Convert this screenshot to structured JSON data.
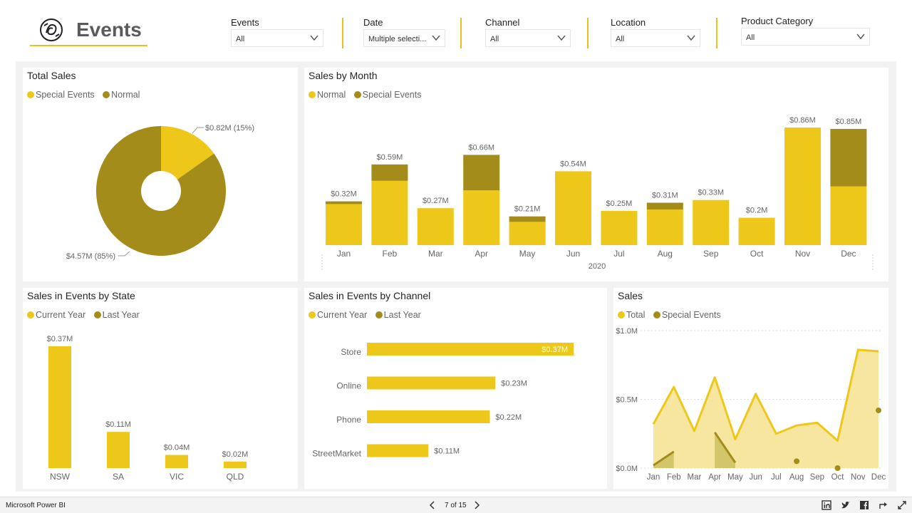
{
  "app": {
    "title": "Events",
    "name": "Microsoft Power BI"
  },
  "filters": [
    {
      "label": "Events",
      "value": "All"
    },
    {
      "label": "Date",
      "value": "Multiple selecti..."
    },
    {
      "label": "Channel",
      "value": "All"
    },
    {
      "label": "Location",
      "value": "All"
    },
    {
      "label": "Product Category",
      "value": "All"
    }
  ],
  "colors": {
    "accent": "#e6c21d",
    "primary": "#edc81b",
    "secondary": "#a48c1a",
    "light": "#f6e6a0"
  },
  "pager": {
    "indicator": "7 of 15"
  },
  "icons": [
    "logo-icon",
    "chevron-down-icon",
    "chevron-left-icon",
    "chevron-right-icon",
    "linkedin-icon",
    "twitter-icon",
    "facebook-icon",
    "share-icon",
    "fullscreen-icon"
  ],
  "chart_data": [
    {
      "type": "pie",
      "title": "Total Sales",
      "series": [
        {
          "name": "Special Events",
          "value": 0.82,
          "label": "$0.82M (15%)"
        },
        {
          "name": "Normal",
          "value": 4.57,
          "label": "$4.57M (85%)"
        }
      ],
      "legend": [
        {
          "name": "Special Events"
        },
        {
          "name": "Normal"
        }
      ]
    },
    {
      "type": "bar",
      "title": "Sales by Month",
      "xlabel": "2020",
      "categories": [
        "Jan",
        "Feb",
        "Mar",
        "Apr",
        "May",
        "Jun",
        "Jul",
        "Aug",
        "Sep",
        "Oct",
        "Nov",
        "Dec"
      ],
      "series": [
        {
          "name": "Normal",
          "values": [
            0.3,
            0.47,
            0.27,
            0.4,
            0.17,
            0.54,
            0.25,
            0.26,
            0.33,
            0.2,
            0.86,
            0.43
          ]
        },
        {
          "name": "Special Events",
          "values": [
            0.02,
            0.12,
            0.0,
            0.26,
            0.04,
            0.0,
            0.0,
            0.05,
            0.0,
            0.0,
            0.0,
            0.42
          ]
        }
      ],
      "totals": [
        "$0.32M",
        "$0.59M",
        "$0.27M",
        "$0.66M",
        "$0.21M",
        "$0.54M",
        "$0.25M",
        "$0.31M",
        "$0.33M",
        "$0.2M",
        "$0.86M",
        "$0.85M"
      ],
      "ylim": [
        0,
        0.86
      ]
    },
    {
      "type": "bar",
      "title": "Sales in Events by State",
      "categories": [
        "NSW",
        "SA",
        "VIC",
        "QLD"
      ],
      "series": [
        {
          "name": "Current Year",
          "values": [
            0.37,
            0.11,
            0.04,
            0.02
          ]
        },
        {
          "name": "Last Year",
          "values": [
            0,
            0,
            0,
            0
          ]
        }
      ],
      "labels": [
        "$0.37M",
        "$0.11M",
        "$0.04M",
        "$0.02M"
      ],
      "ylim": [
        0,
        0.37
      ]
    },
    {
      "type": "bar",
      "title": "Sales in Events by Channel",
      "categories": [
        "Store",
        "Online",
        "Phone",
        "StreetMarket"
      ],
      "series": [
        {
          "name": "Current Year",
          "values": [
            0.37,
            0.23,
            0.22,
            0.11
          ]
        },
        {
          "name": "Last Year",
          "values": [
            0,
            0,
            0,
            0
          ]
        }
      ],
      "labels": [
        "$0.37M",
        "$0.23M",
        "$0.22M",
        "$0.11M"
      ],
      "xlim": [
        0,
        0.37
      ]
    },
    {
      "type": "area",
      "title": "Sales",
      "categories": [
        "Jan",
        "Feb",
        "Mar",
        "Apr",
        "May",
        "Jun",
        "Jul",
        "Aug",
        "Sep",
        "Oct",
        "Nov",
        "Dec"
      ],
      "series": [
        {
          "name": "Total",
          "values": [
            0.32,
            0.59,
            0.27,
            0.66,
            0.21,
            0.54,
            0.25,
            0.31,
            0.33,
            0.2,
            0.86,
            0.85
          ]
        },
        {
          "name": "Special Events",
          "values": [
            0.02,
            0.12,
            null,
            0.26,
            0.04,
            null,
            null,
            0.05,
            null,
            0.0,
            null,
            0.42
          ]
        }
      ],
      "yticks": [
        "$1.0M",
        "$0.5M",
        "$0.0M"
      ],
      "ylim": [
        0,
        1.0
      ],
      "grid": true
    }
  ]
}
